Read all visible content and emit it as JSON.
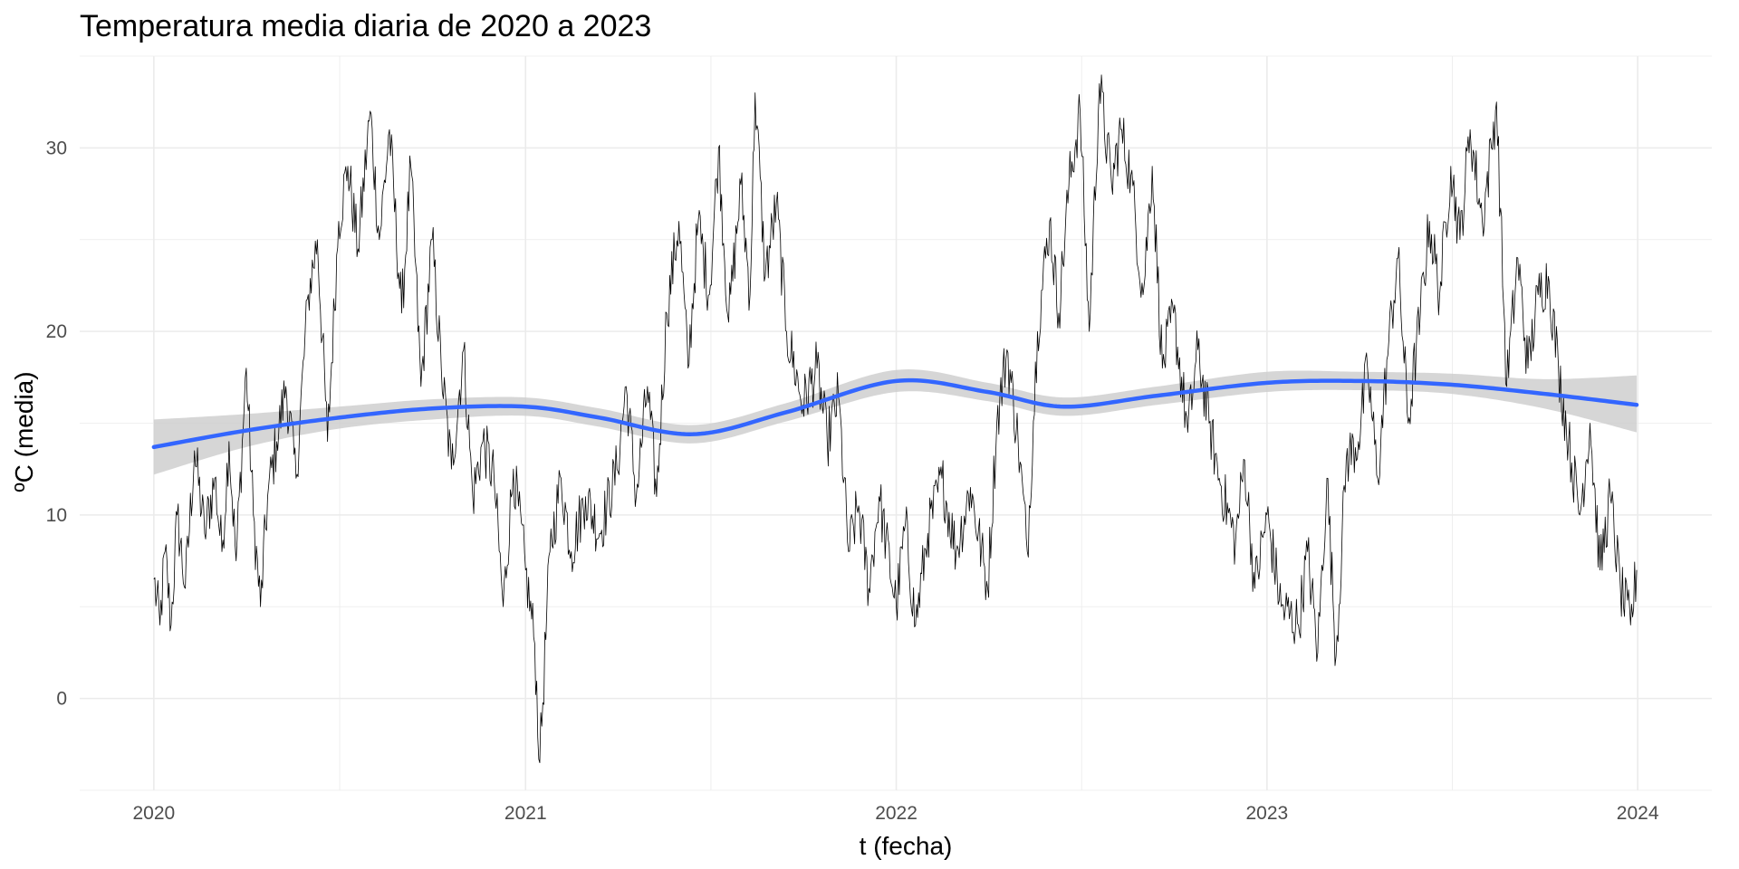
{
  "chart_data": {
    "type": "line",
    "title": "Temperatura media diaria de 2020 a 2023",
    "xlabel": "t (fecha)",
    "ylabel": "ºC (media)",
    "xlim": [
      "2019-10-20",
      "2024-03-14"
    ],
    "ylim": [
      -5,
      35
    ],
    "x_ticks": [
      "2020",
      "2021",
      "2022",
      "2023",
      "2024"
    ],
    "x_tick_dates": [
      "2020-01-01",
      "2021-01-01",
      "2022-01-01",
      "2023-01-01",
      "2024-01-01"
    ],
    "y_ticks": [
      0,
      10,
      20,
      30
    ],
    "grid": true,
    "legend": "none",
    "series": [
      {
        "kind": "daily_line",
        "color": "#000000",
        "x_start": "2020-01-01",
        "x_end": "2023-12-31",
        "step_days": 1,
        "key_points": [
          [
            "2020-01-01",
            6.5
          ],
          [
            "2020-01-07",
            4.0
          ],
          [
            "2020-01-12",
            8.0
          ],
          [
            "2020-01-18",
            4.0
          ],
          [
            "2020-01-24",
            10.0
          ],
          [
            "2020-02-01",
            6.0
          ],
          [
            "2020-02-10",
            13.5
          ],
          [
            "2020-02-20",
            9.0
          ],
          [
            "2020-03-01",
            12.0
          ],
          [
            "2020-03-08",
            8.0
          ],
          [
            "2020-03-15",
            14.0
          ],
          [
            "2020-03-22",
            7.5
          ],
          [
            "2020-04-01",
            18.0
          ],
          [
            "2020-04-08",
            10.0
          ],
          [
            "2020-04-15",
            5.0
          ],
          [
            "2020-04-22",
            11.0
          ],
          [
            "2020-05-01",
            14.0
          ],
          [
            "2020-05-10",
            17.0
          ],
          [
            "2020-05-20",
            12.0
          ],
          [
            "2020-06-01",
            22.0
          ],
          [
            "2020-06-10",
            25.0
          ],
          [
            "2020-06-20",
            14.0
          ],
          [
            "2020-07-01",
            26.0
          ],
          [
            "2020-07-10",
            29.0
          ],
          [
            "2020-07-20",
            24.5
          ],
          [
            "2020-08-01",
            32.0
          ],
          [
            "2020-08-10",
            25.0
          ],
          [
            "2020-08-20",
            31.0
          ],
          [
            "2020-09-01",
            21.0
          ],
          [
            "2020-09-10",
            29.0
          ],
          [
            "2020-09-20",
            17.0
          ],
          [
            "2020-10-01",
            25.0
          ],
          [
            "2020-10-10",
            18.0
          ],
          [
            "2020-10-20",
            12.5
          ],
          [
            "2020-11-01",
            19.0
          ],
          [
            "2020-11-10",
            11.0
          ],
          [
            "2020-11-20",
            14.0
          ],
          [
            "2020-12-01",
            12.0
          ],
          [
            "2020-12-10",
            5.0
          ],
          [
            "2020-12-20",
            12.5
          ],
          [
            "2021-01-01",
            7.0
          ],
          [
            "2021-01-10",
            3.0
          ],
          [
            "2021-01-15",
            -3.5
          ],
          [
            "2021-01-25",
            8.0
          ],
          [
            "2021-02-05",
            12.0
          ],
          [
            "2021-02-15",
            8.0
          ],
          [
            "2021-03-01",
            11.0
          ],
          [
            "2021-03-15",
            9.0
          ],
          [
            "2021-04-01",
            12.5
          ],
          [
            "2021-04-10",
            17.0
          ],
          [
            "2021-04-20",
            11.0
          ],
          [
            "2021-05-01",
            17.0
          ],
          [
            "2021-05-10",
            11.0
          ],
          [
            "2021-05-20",
            21.0
          ],
          [
            "2021-06-01",
            26.0
          ],
          [
            "2021-06-10",
            18.0
          ],
          [
            "2021-06-20",
            26.0
          ],
          [
            "2021-07-01",
            22.0
          ],
          [
            "2021-07-10",
            30.0
          ],
          [
            "2021-07-20",
            20.5
          ],
          [
            "2021-08-01",
            28.0
          ],
          [
            "2021-08-10",
            22.0
          ],
          [
            "2021-08-15",
            33.0
          ],
          [
            "2021-08-25",
            23.0
          ],
          [
            "2021-09-05",
            27.0
          ],
          [
            "2021-09-15",
            20.0
          ],
          [
            "2021-10-01",
            16.0
          ],
          [
            "2021-10-15",
            18.0
          ],
          [
            "2021-10-25",
            14.0
          ],
          [
            "2021-11-05",
            16.5
          ],
          [
            "2021-11-15",
            8.0
          ],
          [
            "2021-11-25",
            10.5
          ],
          [
            "2021-12-05",
            6.0
          ],
          [
            "2021-12-15",
            11.0
          ],
          [
            "2022-01-01",
            5.0
          ],
          [
            "2022-01-10",
            9.5
          ],
          [
            "2022-01-20",
            4.0
          ],
          [
            "2022-02-01",
            9.0
          ],
          [
            "2022-02-15",
            12.0
          ],
          [
            "2022-03-01",
            8.0
          ],
          [
            "2022-03-15",
            11.5
          ],
          [
            "2022-04-01",
            6.0
          ],
          [
            "2022-04-10",
            15.0
          ],
          [
            "2022-04-20",
            19.0
          ],
          [
            "2022-05-01",
            14.0
          ],
          [
            "2022-05-10",
            8.0
          ],
          [
            "2022-05-20",
            20.0
          ],
          [
            "2022-06-01",
            26.0
          ],
          [
            "2022-06-10",
            21.0
          ],
          [
            "2022-06-20",
            28.0
          ],
          [
            "2022-07-01",
            32.0
          ],
          [
            "2022-07-10",
            20.0
          ],
          [
            "2022-07-20",
            33.5
          ],
          [
            "2022-08-01",
            28.0
          ],
          [
            "2022-08-10",
            31.0
          ],
          [
            "2022-08-20",
            28.5
          ],
          [
            "2022-09-01",
            22.0
          ],
          [
            "2022-09-10",
            29.0
          ],
          [
            "2022-09-20",
            18.0
          ],
          [
            "2022-10-01",
            21.0
          ],
          [
            "2022-10-15",
            14.5
          ],
          [
            "2022-10-25",
            19.0
          ],
          [
            "2022-11-05",
            15.0
          ],
          [
            "2022-11-15",
            12.0
          ],
          [
            "2022-12-01",
            8.5
          ],
          [
            "2022-12-10",
            13.0
          ],
          [
            "2022-12-20",
            6.0
          ],
          [
            "2023-01-01",
            10.0
          ],
          [
            "2023-01-15",
            5.0
          ],
          [
            "2023-02-01",
            4.0
          ],
          [
            "2023-02-10",
            8.0
          ],
          [
            "2023-02-20",
            2.5
          ],
          [
            "2023-03-01",
            12.0
          ],
          [
            "2023-03-10",
            2.3
          ],
          [
            "2023-03-20",
            13.0
          ],
          [
            "2023-04-01",
            14.0
          ],
          [
            "2023-04-10",
            18.0
          ],
          [
            "2023-04-20",
            12.0
          ],
          [
            "2023-05-01",
            19.5
          ],
          [
            "2023-05-10",
            24.0
          ],
          [
            "2023-05-20",
            15.0
          ],
          [
            "2023-06-01",
            21.0
          ],
          [
            "2023-06-10",
            26.0
          ],
          [
            "2023-06-20",
            22.0
          ],
          [
            "2023-07-01",
            29.0
          ],
          [
            "2023-07-10",
            25.0
          ],
          [
            "2023-07-20",
            31.0
          ],
          [
            "2023-08-01",
            26.0
          ],
          [
            "2023-08-10",
            30.0
          ],
          [
            "2023-08-15",
            32.5
          ],
          [
            "2023-08-25",
            17.0
          ],
          [
            "2023-09-05",
            24.0
          ],
          [
            "2023-09-15",
            18.0
          ],
          [
            "2023-09-25",
            22.0
          ],
          [
            "2023-10-05",
            23.0
          ],
          [
            "2023-10-15",
            18.0
          ],
          [
            "2023-10-25",
            14.0
          ],
          [
            "2023-11-05",
            10.0
          ],
          [
            "2023-11-15",
            15.0
          ],
          [
            "2023-11-25",
            7.0
          ],
          [
            "2023-12-05",
            11.0
          ],
          [
            "2023-12-15",
            6.0
          ],
          [
            "2023-12-25",
            4.0
          ],
          [
            "2023-12-31",
            7.0
          ]
        ]
      },
      {
        "kind": "smooth",
        "color": "#3366FF",
        "band_color": "#cccccc",
        "points": [
          [
            "2020-01-01",
            13.7,
            12.2,
            15.2
          ],
          [
            "2020-04-01",
            14.6,
            13.7,
            15.5
          ],
          [
            "2020-07-01",
            15.3,
            14.7,
            15.9
          ],
          [
            "2020-10-01",
            15.8,
            15.2,
            16.3
          ],
          [
            "2021-01-01",
            15.9,
            15.4,
            16.4
          ],
          [
            "2021-03-15",
            15.3,
            14.8,
            15.8
          ],
          [
            "2021-06-15",
            14.4,
            13.9,
            14.9
          ],
          [
            "2021-09-15",
            15.6,
            15.1,
            16.1
          ],
          [
            "2022-01-01",
            17.3,
            16.7,
            17.9
          ],
          [
            "2022-04-01",
            16.7,
            16.2,
            17.2
          ],
          [
            "2022-06-15",
            15.9,
            15.4,
            16.4
          ],
          [
            "2022-09-15",
            16.5,
            16.0,
            17.0
          ],
          [
            "2023-01-01",
            17.2,
            16.7,
            17.8
          ],
          [
            "2023-04-01",
            17.3,
            16.8,
            17.8
          ],
          [
            "2023-07-01",
            17.1,
            16.6,
            17.7
          ],
          [
            "2023-10-01",
            16.6,
            15.8,
            17.4
          ],
          [
            "2023-12-31",
            16.0,
            14.5,
            17.6
          ]
        ]
      }
    ]
  }
}
